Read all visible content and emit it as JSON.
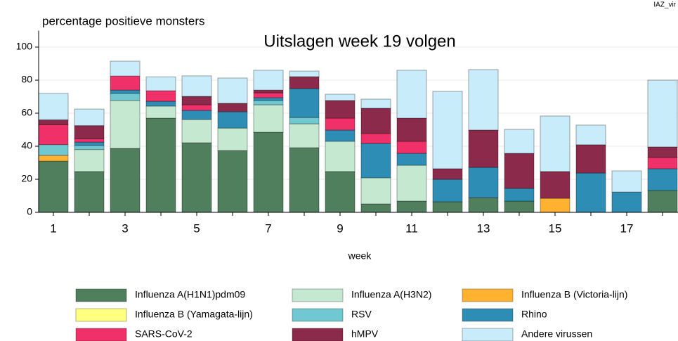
{
  "chart_data": {
    "type": "stacked_bar",
    "title": "Uitslagen week 19 volgen",
    "source_note": "IAZ_vir",
    "y_label": "percentage positieve monsters",
    "x_label": "week",
    "categories": [
      "1",
      null,
      "3",
      null,
      "5",
      null,
      "7",
      null,
      "9",
      null,
      "11",
      null,
      "13",
      null,
      "15",
      null,
      "17",
      null
    ],
    "ylim": [
      0,
      110
    ],
    "yticks": [
      0,
      20,
      40,
      60,
      80,
      100
    ],
    "grid": true,
    "series": [
      {
        "name": "Influenza A(H1N1)pdm09",
        "color": "#4f7f5d",
        "values": [
          31,
          24.7,
          38.7,
          57,
          42.1,
          37.4,
          48.5,
          39.1,
          24.7,
          5.1,
          6.8,
          6.4,
          8.9,
          6.8,
          0,
          0,
          0,
          13.2
        ]
      },
      {
        "name": "Influenza A(H3N2)",
        "color": "#c5e8d0",
        "values": [
          0,
          13.3,
          29,
          7.3,
          14.1,
          13.6,
          16.6,
          14.5,
          18.3,
          15.8,
          21.7,
          0,
          0,
          0,
          0,
          0,
          0,
          0
        ]
      },
      {
        "name": "Influenza B (Victoria-lijn)",
        "color": "#ffb130",
        "values": [
          3.5,
          0,
          0,
          0,
          0,
          0,
          0,
          0,
          0,
          0,
          0,
          0,
          0,
          0,
          8.5,
          0,
          0,
          0
        ]
      },
      {
        "name": "Influenza B (Yamagata-lijn)",
        "color": "#ffff80",
        "values": [
          0,
          0,
          0,
          0,
          0,
          0,
          0,
          0,
          0,
          0,
          0,
          0,
          0,
          0,
          0,
          0,
          0,
          0
        ]
      },
      {
        "name": "RSV",
        "color": "#70c8d0",
        "values": [
          6.5,
          2.5,
          4.3,
          0,
          0,
          0,
          2.6,
          3.8,
          0,
          0,
          0,
          0,
          0,
          0,
          0,
          0,
          0,
          0
        ]
      },
      {
        "name": "Rhino",
        "color": "#2e8db5",
        "values": [
          0,
          2,
          2,
          2.9,
          5.5,
          9.9,
          1.7,
          17.5,
          6.8,
          20.8,
          7.2,
          13.6,
          18.3,
          7.7,
          0,
          23.8,
          12.3,
          13.2
        ]
      },
      {
        "name": "SARS-CoV-2",
        "color": "#f03068",
        "values": [
          12,
          2,
          8.5,
          6.4,
          3.4,
          0,
          2.9,
          0,
          7.2,
          6,
          7.3,
          0,
          0,
          0,
          0,
          0,
          0,
          6.8
        ]
      },
      {
        "name": "hMPV",
        "color": "#8c2a4c",
        "values": [
          3,
          8,
          0,
          0,
          5.1,
          5.1,
          1.7,
          7.2,
          10.7,
          15.3,
          14,
          6.4,
          22.6,
          21.2,
          16.2,
          17.1,
          0,
          6.4
        ]
      },
      {
        "name": "Andere virussen",
        "color": "#c8ecfa",
        "values": [
          16,
          10,
          9,
          8.4,
          12.4,
          15.3,
          12,
          3.4,
          3.8,
          5.5,
          29,
          46.8,
          36.6,
          14.5,
          33.6,
          11.9,
          12.8,
          40.4
        ]
      }
    ]
  }
}
